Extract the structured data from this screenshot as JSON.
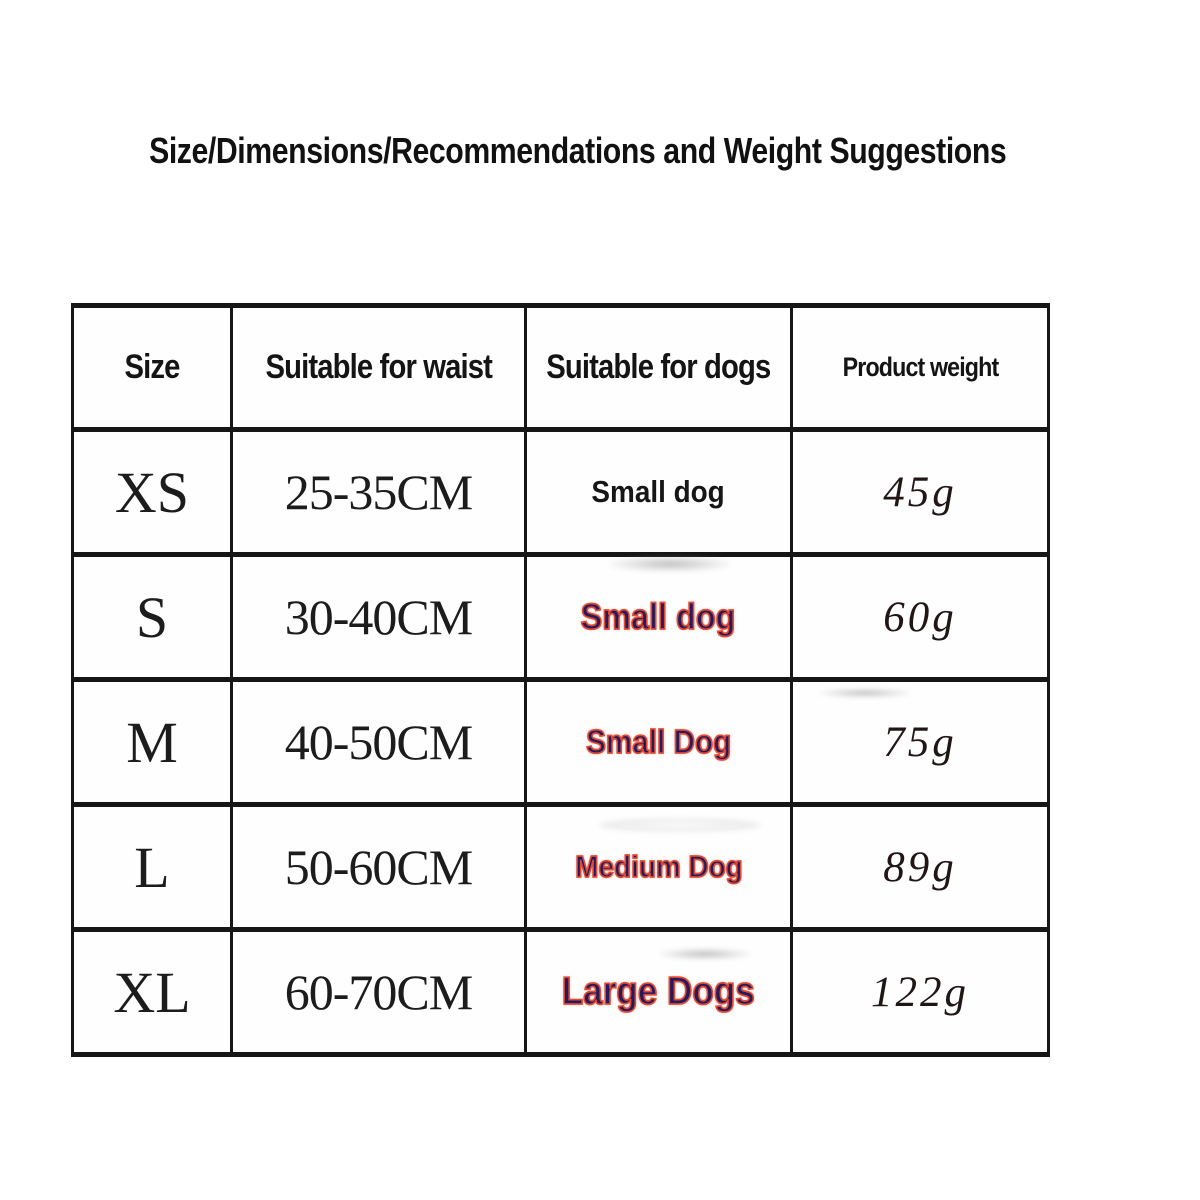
{
  "title": "Size/Dimensions/Recommendations and Weight Suggestions",
  "table": {
    "columns": [
      "Size",
      "Suitable for waist",
      "Suitable for dogs",
      "Product weight"
    ],
    "rows": [
      {
        "size": "XS",
        "waist": "25-35CM",
        "dogs": "Small dog",
        "weight": "45g"
      },
      {
        "size": "S",
        "waist": "30-40CM",
        "dogs": "Small dog",
        "weight": "60g"
      },
      {
        "size": "M",
        "waist": "40-50CM",
        "dogs": "Small Dog",
        "weight": "75g"
      },
      {
        "size": "L",
        "waist": "50-60CM",
        "dogs": "Medium Dog",
        "weight": "89g"
      },
      {
        "size": "XL",
        "waist": "60-70CM",
        "dogs": "Large Dogs",
        "weight": "122g"
      }
    ]
  },
  "colors": {
    "text": "#141414",
    "border": "#161616",
    "dog_highlight_fill": "#241a5e",
    "dog_highlight_outline": "#e14b33",
    "background": "#ffffff"
  }
}
